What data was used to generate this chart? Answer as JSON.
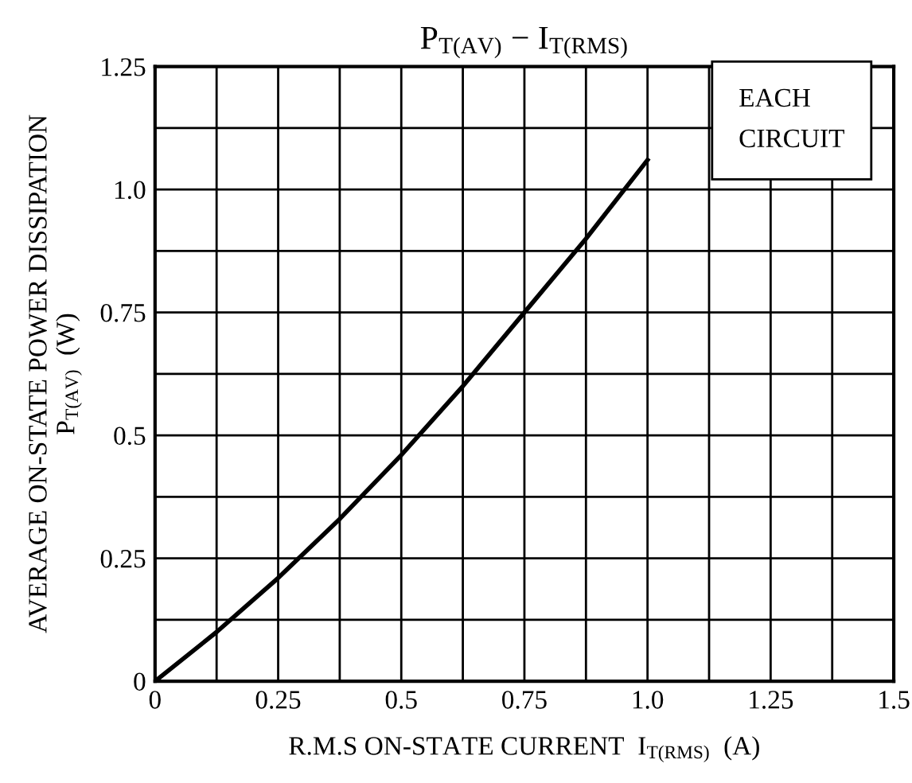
{
  "chart_data": {
    "type": "line",
    "title": "P$_{T(AV)}$ − I$_{T(RMS)}$",
    "xlabel": "R.M.S ON-STATE CURRENT  I$_{T(RMS)}$  (A)",
    "ylabel": "AVERAGE ON-STATE POWER DISSIPATION\nP$_{T(AV)}$  (W)",
    "x": [
      0,
      0.125,
      0.25,
      0.375,
      0.5,
      0.625,
      0.75,
      0.875,
      1.0
    ],
    "series": [
      {
        "color": "#000000",
        "values": [
          0,
          0.1,
          0.21,
          0.33,
          0.46,
          0.6,
          0.75,
          0.9,
          1.06
        ]
      }
    ],
    "xlim": [
      0,
      1.5
    ],
    "ylim": [
      0,
      1.25
    ],
    "xticks": [
      0,
      {
        "value": 0.125,
        "label": null
      },
      0.25,
      {
        "value": 0.375,
        "label": null
      },
      0.5,
      {
        "value": 0.625,
        "label": null
      },
      0.75,
      {
        "value": 0.875,
        "label": null
      },
      {
        "value": 1.0,
        "label": "1.0"
      },
      {
        "value": 1.125,
        "label": null
      },
      1.25,
      {
        "value": 1.375,
        "label": null
      },
      1.5
    ],
    "yticks": [
      0,
      {
        "value": 0.125,
        "label": null
      },
      0.25,
      {
        "value": 0.375,
        "label": null
      },
      0.5,
      {
        "value": 0.625,
        "label": null
      },
      0.75,
      {
        "value": 0.875,
        "label": null
      },
      {
        "value": 1.0,
        "label": "1.0"
      },
      {
        "value": 1.125,
        "label": null
      },
      1.25
    ],
    "annotations": [
      "EACH\nCIRCUIT"
    ],
    "grid": true,
    "marker": "none",
    "line_style": "solid"
  }
}
